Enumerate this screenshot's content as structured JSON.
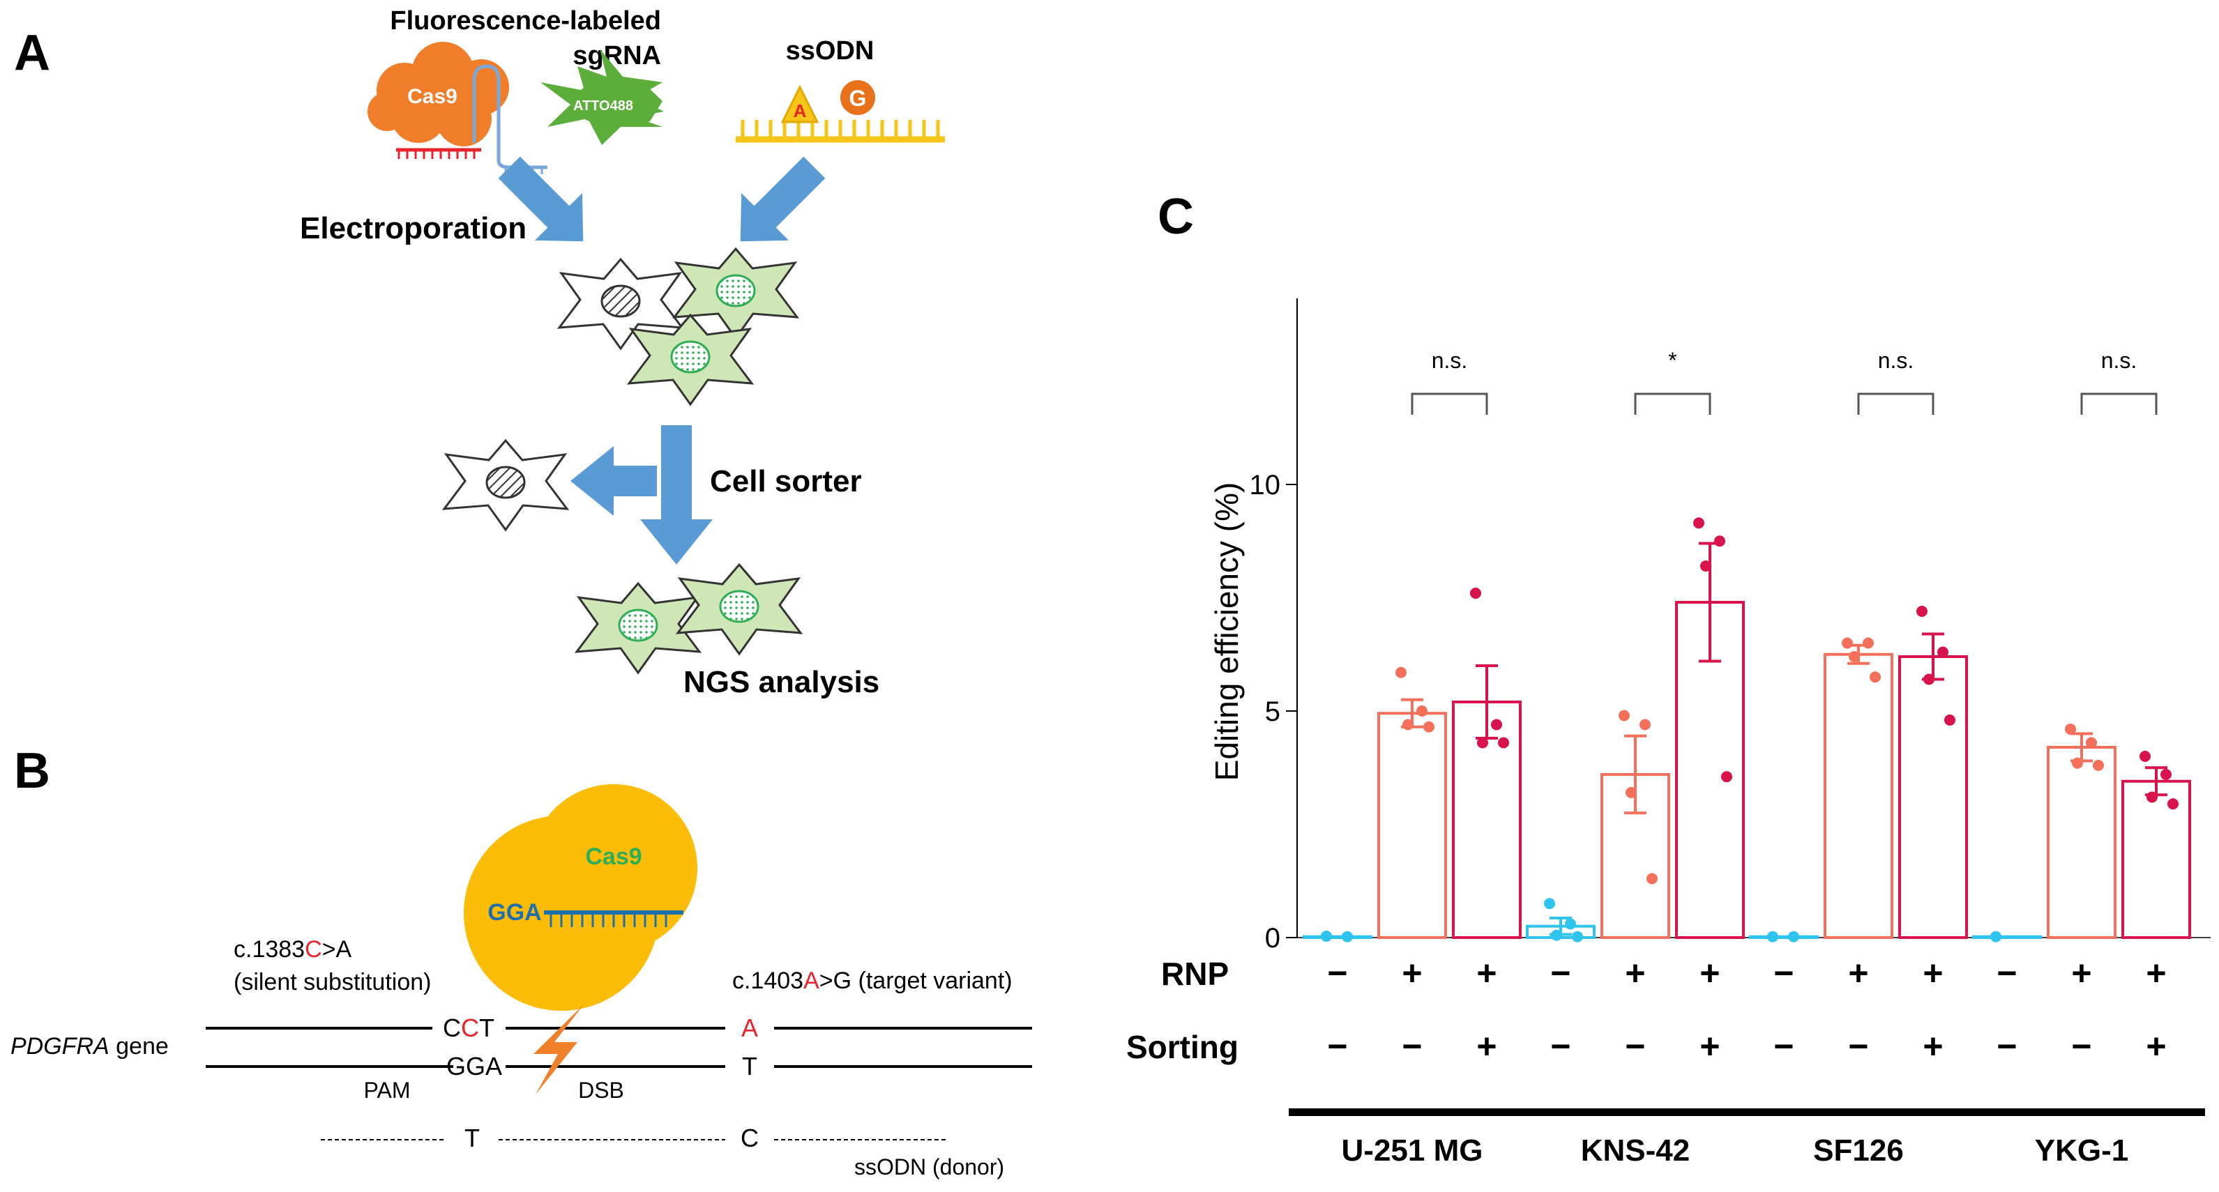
{
  "panels": {
    "a": "A",
    "b": "B",
    "c": "C"
  },
  "panel_a": {
    "sgrna_title_line1": "Fluorescence-labeled",
    "sgrna_title_line2": "sgRNA",
    "ssodn_title": "ssODN",
    "cas9_label": "Cas9",
    "atto_label": "ATTO488",
    "ssodn_base_a": "A",
    "ssodn_base_g": "G",
    "step_electroporation": "Electroporation",
    "step_sorter": "Cell sorter",
    "step_ngs": "NGS analysis"
  },
  "panel_b": {
    "cas9_label": "Cas9",
    "guide_seq": "GGA",
    "silent_pre": "c.1383",
    "silent_red": "C",
    "silent_post": ">A",
    "silent_desc": "(silent substitution)",
    "target_pre": "c.1403",
    "target_red": "A",
    "target_post": ">G (target variant)",
    "gene_italic": "PDGFRA",
    "gene_rest": " gene",
    "top_c1": "C",
    "top_c2": "C",
    "top_t": "T",
    "top_a": "A",
    "bottom_gga": "GGA",
    "bottom_t": "T",
    "pam": "PAM",
    "dsb": "DSB",
    "donor_t": "T",
    "donor_c": "C",
    "donor_label": "ssODN (donor)"
  },
  "colors": {
    "blue_arrow": "#5b9bd5",
    "cas9_orange": "#f07d2a",
    "cell_green": "#cfe6b6",
    "ssodn_yellow": "#f5c518",
    "cas9_gold": "#fbbd07",
    "red_text": "#e8242d",
    "group_no_rnp": "#2ec4ee",
    "group_rnp": "#f5705a",
    "group_rnp_sort": "#d9134b"
  },
  "chart_data": {
    "type": "bar",
    "ylabel": "Editing efficiency (%)",
    "ylim": [
      0,
      14
    ],
    "yticks": [
      0,
      5,
      10
    ],
    "row_labels": [
      "RNP",
      "Sorting"
    ],
    "conditions": [
      {
        "rnp": "−",
        "sorting": "−"
      },
      {
        "rnp": "+",
        "sorting": "−"
      },
      {
        "rnp": "+",
        "sorting": "+"
      }
    ],
    "cell_lines": [
      {
        "name": "U-251 MG",
        "bars": [
          {
            "mean": 0.02,
            "sem": 0,
            "points": [
              0.03,
              0.02
            ]
          },
          {
            "mean": 4.95,
            "sem": 0.3,
            "points": [
              5.85,
              5.0,
              4.7,
              4.65
            ]
          },
          {
            "mean": 5.2,
            "sem": 0.8,
            "points": [
              7.6,
              4.7,
              4.3,
              4.3
            ]
          }
        ],
        "significance": "n.s."
      },
      {
        "name": "KNS-42",
        "bars": [
          {
            "mean": 0.25,
            "sem": 0.18,
            "points": [
              0.75,
              0.3,
              0.05,
              0.02
            ]
          },
          {
            "mean": 3.6,
            "sem": 0.85,
            "points": [
              4.9,
              4.7,
              3.2,
              1.3
            ]
          },
          {
            "mean": 7.4,
            "sem": 1.3,
            "points": [
              9.15,
              8.75,
              8.2,
              3.55
            ]
          }
        ],
        "significance": "*"
      },
      {
        "name": "SF126",
        "bars": [
          {
            "mean": 0.02,
            "sem": 0,
            "points": [
              0.02,
              0.02
            ]
          },
          {
            "mean": 6.25,
            "sem": 0.2,
            "points": [
              6.5,
              6.5,
              6.2,
              5.75
            ]
          },
          {
            "mean": 6.2,
            "sem": 0.5,
            "points": [
              7.2,
              6.3,
              5.7,
              4.8
            ]
          }
        ],
        "significance": "n.s."
      },
      {
        "name": "YKG-1",
        "bars": [
          {
            "mean": 0.02,
            "sem": 0,
            "points": [
              0.02
            ]
          },
          {
            "mean": 4.2,
            "sem": 0.3,
            "points": [
              4.6,
              4.3,
              3.85,
              3.8
            ]
          },
          {
            "mean": 3.45,
            "sem": 0.3,
            "points": [
              4.0,
              3.6,
              3.1,
              2.95
            ]
          }
        ],
        "significance": "n.s."
      }
    ]
  }
}
